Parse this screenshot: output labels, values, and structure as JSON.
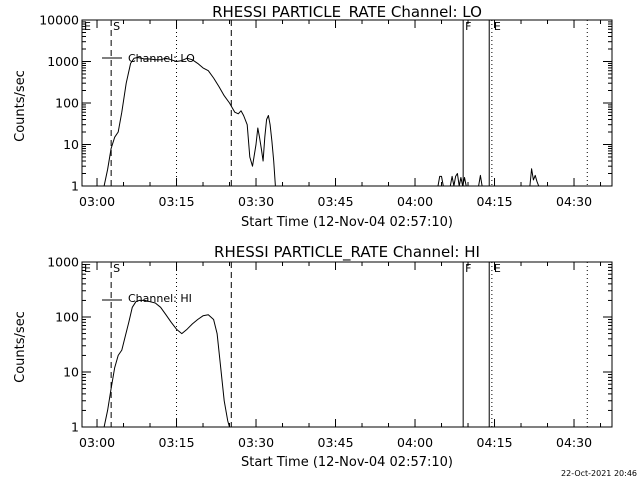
{
  "chart_data": [
    {
      "type": "line",
      "title": "RHESSI PARTICLE_RATE Channel: LO",
      "xlabel": "Start Time (12-Nov-04 02:57:10)",
      "ylabel": "Counts/sec",
      "y_scale": "log",
      "ylim": [
        1,
        10000
      ],
      "xlim": [
        "02:57:10",
        "04:37:10"
      ],
      "x_ticks": [
        "03:00",
        "03:15",
        "03:30",
        "03:45",
        "04:00",
        "04:15",
        "04:30"
      ],
      "y_ticks": [
        "1",
        "10",
        "100",
        "1000",
        "10000"
      ],
      "legend": "Channel: LO",
      "markers": [
        {
          "label": "E",
          "time": "02:57:10",
          "style": "dotted"
        },
        {
          "label": "S",
          "time": "03:02:40",
          "style": "dashed"
        },
        {
          "label": "",
          "time": "03:15:00",
          "style": "dotted"
        },
        {
          "label": "",
          "time": "03:25:20",
          "style": "dashed"
        },
        {
          "label": "F",
          "time": "04:09:05",
          "style": "solid"
        },
        {
          "label": "",
          "time": "04:14:00",
          "style": "solid"
        },
        {
          "label": "E",
          "time": "04:14:30",
          "style": "dotted"
        },
        {
          "label": "",
          "time": "04:32:30",
          "style": "dotted"
        }
      ],
      "series": [
        {
          "x": [
            "03:01:20",
            "03:02:00",
            "03:02:40",
            "03:03:20",
            "03:04:00",
            "03:04:40",
            "03:05:30",
            "03:06:20",
            "03:07:00",
            "03:07:40",
            "03:08:20",
            "03:09:00",
            "03:10:00",
            "03:11:00",
            "03:12:00",
            "03:13:00",
            "03:14:00",
            "03:15:00",
            "03:16:00",
            "03:17:00",
            "03:18:00",
            "03:19:00",
            "03:20:00",
            "03:21:00",
            "03:22:00",
            "03:23:00",
            "03:24:00",
            "03:25:00",
            "03:26:00",
            "03:26:40",
            "03:27:10",
            "03:27:40",
            "03:28:20",
            "03:28:50",
            "03:29:20",
            "03:30:00",
            "03:30:20",
            "03:30:40",
            "03:31:00",
            "03:31:20",
            "03:31:40",
            "03:32:00",
            "03:32:20",
            "03:32:40",
            "03:33:00",
            "03:33:20",
            "03:33:40"
          ],
          "values": [
            1,
            2.5,
            8,
            15,
            20,
            60,
            300,
            900,
            1200,
            1250,
            1200,
            1150,
            1150,
            1100,
            1100,
            1200,
            1100,
            1000,
            1050,
            1200,
            1100,
            900,
            700,
            600,
            400,
            250,
            150,
            100,
            60,
            55,
            65,
            50,
            30,
            5,
            3,
            10,
            25,
            15,
            8,
            4,
            15,
            40,
            50,
            30,
            12,
            4,
            1
          ]
        },
        {
          "x": [
            "04:04:20",
            "04:04:40",
            "04:05:00",
            "04:05:20",
            "04:06:40",
            "04:07:00",
            "04:07:20",
            "04:07:40",
            "04:08:00",
            "04:08:20",
            "04:08:40",
            "04:09:00",
            "04:09:20",
            "04:09:40",
            "04:12:00",
            "04:12:20",
            "04:12:40",
            "04:21:40",
            "04:22:00",
            "04:22:20",
            "04:22:40",
            "04:23:00",
            "04:23:20"
          ],
          "values": [
            1,
            1.7,
            1.7,
            1,
            1,
            1.7,
            1,
            1.7,
            2,
            1,
            1.6,
            1,
            1.6,
            1,
            1,
            1.8,
            1,
            1,
            2.6,
            1.4,
            1.8,
            1.3,
            1
          ]
        }
      ]
    },
    {
      "type": "line",
      "title": "RHESSI PARTICLE_RATE Channel: HI",
      "xlabel": "Start Time (12-Nov-04 02:57:10)",
      "ylabel": "Counts/sec",
      "y_scale": "log",
      "ylim": [
        1,
        1000
      ],
      "xlim": [
        "02:57:10",
        "04:37:10"
      ],
      "x_ticks": [
        "03:00",
        "03:15",
        "03:30",
        "03:45",
        "04:00",
        "04:15",
        "04:30"
      ],
      "y_ticks": [
        "1",
        "10",
        "100",
        "1000"
      ],
      "legend": "Channel: HI",
      "markers": [
        {
          "label": "E",
          "time": "02:57:10",
          "style": "dotted"
        },
        {
          "label": "S",
          "time": "03:02:40",
          "style": "dashed"
        },
        {
          "label": "",
          "time": "03:15:00",
          "style": "dotted"
        },
        {
          "label": "",
          "time": "03:25:20",
          "style": "dashed"
        },
        {
          "label": "F",
          "time": "04:09:05",
          "style": "solid"
        },
        {
          "label": "",
          "time": "04:14:00",
          "style": "solid"
        },
        {
          "label": "E",
          "time": "04:14:30",
          "style": "dotted"
        },
        {
          "label": "",
          "time": "04:32:30",
          "style": "dotted"
        }
      ],
      "series": [
        {
          "x": [
            "03:01:20",
            "03:02:00",
            "03:02:40",
            "03:03:20",
            "03:04:00",
            "03:04:40",
            "03:05:20",
            "03:06:00",
            "03:06:40",
            "03:07:20",
            "03:08:00",
            "03:09:00",
            "03:10:00",
            "03:11:00",
            "03:12:00",
            "03:13:00",
            "03:14:00",
            "03:15:00",
            "03:16:00",
            "03:17:00",
            "03:18:00",
            "03:19:00",
            "03:20:00",
            "03:21:00",
            "03:22:00",
            "03:22:40",
            "03:23:20",
            "03:24:00",
            "03:24:40",
            "03:25:00"
          ],
          "values": [
            1,
            2,
            5,
            12,
            20,
            25,
            45,
            80,
            150,
            190,
            200,
            200,
            190,
            180,
            150,
            110,
            80,
            60,
            50,
            60,
            75,
            90,
            105,
            110,
            90,
            50,
            12,
            3,
            1.3,
            1
          ]
        }
      ]
    }
  ],
  "footer": {
    "stamp": "22-Oct-2021 20:46"
  }
}
